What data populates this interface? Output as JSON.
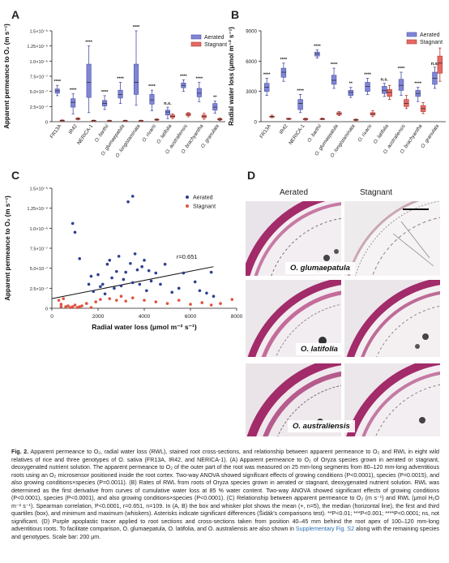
{
  "panels": {
    "a": "A",
    "b": "B",
    "c": "C",
    "d": "D"
  },
  "legend": {
    "aerated": "Aerated",
    "stagnant": "Stagnant"
  },
  "colors": {
    "aerated": "#7f86d6",
    "stagnant": "#e46a63",
    "scatter_aerated": "#2d3f91",
    "scatter_stagnant": "#e0533f",
    "stain": "#a22b6a"
  },
  "panel_d": {
    "col_aerated": "Aerated",
    "col_stagnant": "Stagnant",
    "species": [
      "O. glumaepatula",
      "O. latifolia",
      "O. australiensis"
    ]
  },
  "caption": {
    "title": "Fig. 2.",
    "text": "Apparent permeance to O₂, radial water loss (RWL), stained root cross-sections, and relationship between apparent permeance to O₂ and RWL in eight wild relatives of rice and three genotypes of O. sativa (FR13A, IR42, and NERICA-1). (A) Apparent permeance to O₂ of Oryza species grown in aerated or stagnant, deoxygenated nutrient solution. The apparent permeance to O₂ of the outer part of the root was measured on 25 mm-long segments from 80–120 mm-long adventitious roots using an O₂ microsensor positioned inside the root cortex. Two-way ANOVA showed significant effects of growing conditions (P<0.0001), species (P=0.0015), and also growing conditions×species (P=0.0011). (B) Rates of RWL from roots of Oryza species grown in aerated or stagnant, deoxygenated nutrient solution. RWL was determined as the first derivative from curves of cumulative water loss at 85 % water content. Two-way ANOVA showed significant effects of growing conditions (P<0.0001), species (P<0.0001), and also growing conditions×species (P<0.0001). (C) Relationship between apparent permeance to O₂ (m s⁻¹) and RWL (μmol H₂O m⁻² s⁻¹). Spearman correlation, P<0.0001, r=0.651, n=109. In (A, B) the box and whisker plot shows the mean (+, n=5), the median (horizontal line), the first and third quartiles (box), and minimum and maximum (whiskers). Asterisks indicate significant differences (Šidák's comparisons test). **P<0.01; ***P<0.001; ****P<0.0001; ns, not significant. (D) Purple apoplastic tracer applied to root sections and cross-sections taken from position 40–45 mm behind the root apex of 100–120 mm-long adventitious roots. To facilitate comparison, O. glumaepatula, O. latifolia, and O. australiensis are also shown in ",
    "link": "Supplementary Fig. S2",
    "tail": " along with the remaining species and genotypes. Scale bar: 200 μm."
  },
  "chart_data": [
    {
      "type": "box",
      "panel": "A",
      "ylabel": "Apparent permeance to O₂ (m s⁻¹)",
      "ylim": [
        0,
        1.5e-06
      ],
      "yticks": [
        "0",
        "2.5×10⁻⁷",
        "5.0×10⁻⁷",
        "7.5×10⁻⁷",
        "1.0×10⁻⁶",
        "1.25×10⁻⁶",
        "1.5×10⁻⁶"
      ],
      "categories": [
        "FR13A",
        "IR42",
        "NERICA-1",
        "O. barthii",
        "O. glumaepatula",
        "O. longistaminata",
        "O. rivaris",
        "O. latifolia",
        "O. australiensis",
        "O. brachyantha",
        "O. granulata"
      ],
      "significance": [
        "****",
        "****",
        "****",
        "****",
        "****",
        "****",
        "****",
        "n.s.",
        "****",
        "****",
        "**"
      ],
      "series": [
        {
          "name": "Aerated",
          "boxes": [
            [
              4.3e-07,
              4.7e-07,
              5.1e-07,
              5.4e-07,
              6e-07
            ],
            [
              1.3e-07,
              2.4e-07,
              3.2e-07,
              3.8e-07,
              4.6e-07
            ],
            [
              1.5e-07,
              4e-07,
              6.5e-07,
              9.5e-07,
              1.25e-06
            ],
            [
              2e-07,
              2.6e-07,
              3e-07,
              3.5e-07,
              4.3e-07
            ],
            [
              3e-07,
              3.9e-07,
              4.5e-07,
              5.2e-07,
              6.5e-07
            ],
            [
              2.7e-07,
              4.5e-07,
              6.5e-07,
              9.5e-07,
              1.5e-06
            ],
            [
              1.8e-07,
              2.9e-07,
              3.6e-07,
              4.5e-07,
              5.2e-07
            ],
            [
              5e-08,
              1.1e-07,
              1.6e-07,
              1.9e-07,
              2.4e-07
            ],
            [
              5e-07,
              5.6e-07,
              6e-07,
              6.4e-07,
              6.9e-07
            ],
            [
              3.3e-07,
              4.1e-07,
              4.7e-07,
              5.5e-07,
              6.5e-07
            ],
            [
              1.4e-07,
              1.9e-07,
              2.4e-07,
              3e-07,
              3.4e-07
            ]
          ]
        },
        {
          "name": "Stagnant",
          "boxes": [
            [
              1e-08,
              1.5e-08,
              2e-08,
              2.5e-08,
              3e-08
            ],
            [
              3e-08,
              4e-08,
              4.5e-08,
              5.5e-08,
              6.5e-08
            ],
            [
              1e-08,
              1.5e-08,
              1.8e-08,
              2.2e-08,
              2.6e-08
            ],
            [
              1e-08,
              1.2e-08,
              1.5e-08,
              2e-08,
              2.5e-08
            ],
            [
              1e-08,
              1.3e-08,
              1.6e-08,
              2e-08,
              2.5e-08
            ],
            [
              1e-08,
              1.3e-08,
              1.5e-08,
              2e-08,
              2.5e-08
            ],
            [
              2e-08,
              2.7e-08,
              3.3e-08,
              4e-08,
              5e-08
            ],
            [
              5e-08,
              7e-08,
              9e-08,
              1.1e-07,
              1.3e-07
            ],
            [
              8e-08,
              1e-07,
              1.2e-07,
              1.4e-07,
              1.5e-07
            ],
            [
              4e-08,
              6.5e-08,
              9e-08,
              1.1e-07,
              1.4e-07
            ],
            [
              2e-08,
              3e-08,
              4e-08,
              5e-08,
              6e-08
            ]
          ]
        }
      ]
    },
    {
      "type": "box",
      "panel": "B",
      "ylabel": "Radial water loss (μmol m⁻² s⁻¹)",
      "ylim": [
        0,
        9000
      ],
      "yticks": [
        "0",
        "3000",
        "6000",
        "9000"
      ],
      "categories": [
        "FR13A",
        "IR42",
        "NERICA-1",
        "O. barthii",
        "O. glumaepatula",
        "O. longistaminata",
        "O. rivaris",
        "O. latifolia",
        "O. australiensis",
        "O. brachyantha",
        "O. granulata"
      ],
      "significance": [
        "****",
        "****",
        "****",
        "****",
        "****",
        "**",
        "****",
        "n.s.",
        "****",
        "****",
        "n.s."
      ],
      "series": [
        {
          "name": "Aerated",
          "boxes": [
            [
              2600,
              3000,
              3400,
              3800,
              4300
            ],
            [
              4000,
              4400,
              4900,
              5300,
              5800
            ],
            [
              900,
              1200,
              1800,
              2200,
              2700
            ],
            [
              6300,
              6500,
              6700,
              6900,
              7100
            ],
            [
              3300,
              3700,
              4100,
              4600,
              5300
            ],
            [
              2400,
              2600,
              2900,
              3100,
              3400
            ],
            [
              2700,
              3000,
              3500,
              3900,
              4300
            ],
            [
              2500,
              2800,
              3100,
              3500,
              3800
            ],
            [
              2600,
              3100,
              3600,
              4200,
              4900
            ],
            [
              2000,
              2500,
              2800,
              3100,
              3400
            ],
            [
              3300,
              3700,
              4300,
              4900,
              5400
            ]
          ]
        },
        {
          "name": "Stagnant",
          "boxes": [
            [
              400,
              450,
              500,
              550,
              650
            ],
            [
              200,
              250,
              300,
              320,
              350
            ],
            [
              150,
              200,
              250,
              300,
              350
            ],
            [
              200,
              240,
              270,
              300,
              350
            ],
            [
              600,
              700,
              800,
              900,
              1000
            ],
            [
              100,
              150,
              180,
              220,
              260
            ],
            [
              500,
              650,
              750,
              900,
              1100
            ],
            [
              2200,
              2500,
              2900,
              3200,
              3600
            ],
            [
              1300,
              1500,
              1800,
              2200,
              2600
            ],
            [
              800,
              1000,
              1300,
              1600,
              1900
            ],
            [
              4000,
              4800,
              5800,
              6500,
              7300
            ]
          ]
        }
      ]
    },
    {
      "type": "scatter",
      "panel": "C",
      "xlabel": "Radial water loss (μmol m⁻² s⁻¹)",
      "ylabel": "Apparent permeance to O₂ (m s⁻¹)",
      "xlim": [
        0,
        8000
      ],
      "ylim": [
        0,
        1.5e-06
      ],
      "xticks": [
        "0",
        "2000",
        "4000",
        "6000",
        "8000"
      ],
      "yticks": [
        "0",
        "2.5×10⁻⁷",
        "5.0×10⁻⁷",
        "7.5×10⁻⁷",
        "1.0×10⁻⁶",
        "1.25×10⁻⁶",
        "1.5×10⁻⁶"
      ],
      "annotation": "r=0.651",
      "trend": [
        [
          0,
          1.2e-07
        ],
        [
          7000,
          5.2e-07
        ]
      ],
      "series": [
        {
          "name": "Aerated",
          "points": [
            [
              900,
              1.06e-06
            ],
            [
              1000,
              9.5e-07
            ],
            [
              1200,
              6.2e-07
            ],
            [
              1700,
              4e-07
            ],
            [
              1600,
              3e-07
            ],
            [
              1800,
              2.1e-07
            ],
            [
              2000,
              4.2e-07
            ],
            [
              2200,
              3e-07
            ],
            [
              2400,
              5.5e-07
            ],
            [
              2500,
              6e-07
            ],
            [
              2600,
              3.8e-07
            ],
            [
              2700,
              2.5e-07
            ],
            [
              2800,
              4.6e-07
            ],
            [
              2900,
              6.5e-07
            ],
            [
              3000,
              2.8e-07
            ],
            [
              3100,
              3.6e-07
            ],
            [
              3200,
              4.5e-07
            ],
            [
              3300,
              1.33e-06
            ],
            [
              3400,
              5.6e-07
            ],
            [
              3500,
              1.4e-06
            ],
            [
              3600,
              6.8e-07
            ],
            [
              3700,
              4.8e-07
            ],
            [
              3800,
              3e-07
            ],
            [
              3900,
              5.2e-07
            ],
            [
              4000,
              6e-07
            ],
            [
              4100,
              2.2e-07
            ],
            [
              4200,
              4.7e-07
            ],
            [
              4300,
              3.4e-07
            ],
            [
              4500,
              4.4e-07
            ],
            [
              4700,
              3e-07
            ],
            [
              4900,
              5.5e-07
            ],
            [
              5200,
              2e-07
            ],
            [
              5500,
              2.5e-07
            ],
            [
              5700,
              4.4e-07
            ],
            [
              6200,
              3.3e-07
            ],
            [
              6400,
              2.2e-07
            ],
            [
              6700,
              1.9e-07
            ],
            [
              6900,
              4.5e-07
            ],
            [
              7000,
              1.5e-07
            ],
            [
              2300,
              1.8e-07
            ],
            [
              2100,
              2.7e-07
            ],
            [
              3500,
              3.2e-07
            ]
          ]
        },
        {
          "name": "Stagnant",
          "points": [
            [
              300,
              1e-07
            ],
            [
              400,
              5e-08
            ],
            [
              500,
              1.2e-07
            ],
            [
              600,
              2e-08
            ],
            [
              700,
              3e-08
            ],
            [
              800,
              1e-08
            ],
            [
              900,
              2e-08
            ],
            [
              1000,
              4e-08
            ],
            [
              1100,
              1e-08
            ],
            [
              1200,
              2e-08
            ],
            [
              1300,
              3e-08
            ],
            [
              1500,
              6e-08
            ],
            [
              1700,
              1e-08
            ],
            [
              1900,
              8e-08
            ],
            [
              2100,
              1.1e-07
            ],
            [
              2500,
              1.2e-07
            ],
            [
              2800,
              1e-07
            ],
            [
              3000,
              1.5e-07
            ],
            [
              3200,
              9e-08
            ],
            [
              3500,
              1.3e-07
            ],
            [
              4000,
              1e-07
            ],
            [
              4500,
              8e-08
            ],
            [
              5000,
              6e-08
            ],
            [
              5500,
              1e-07
            ],
            [
              6000,
              5e-08
            ],
            [
              6500,
              7e-08
            ],
            [
              6900,
              4e-08
            ],
            [
              7300,
              6e-08
            ],
            [
              7800,
              1.1e-07
            ],
            [
              400,
              2e-08
            ]
          ]
        }
      ]
    }
  ]
}
